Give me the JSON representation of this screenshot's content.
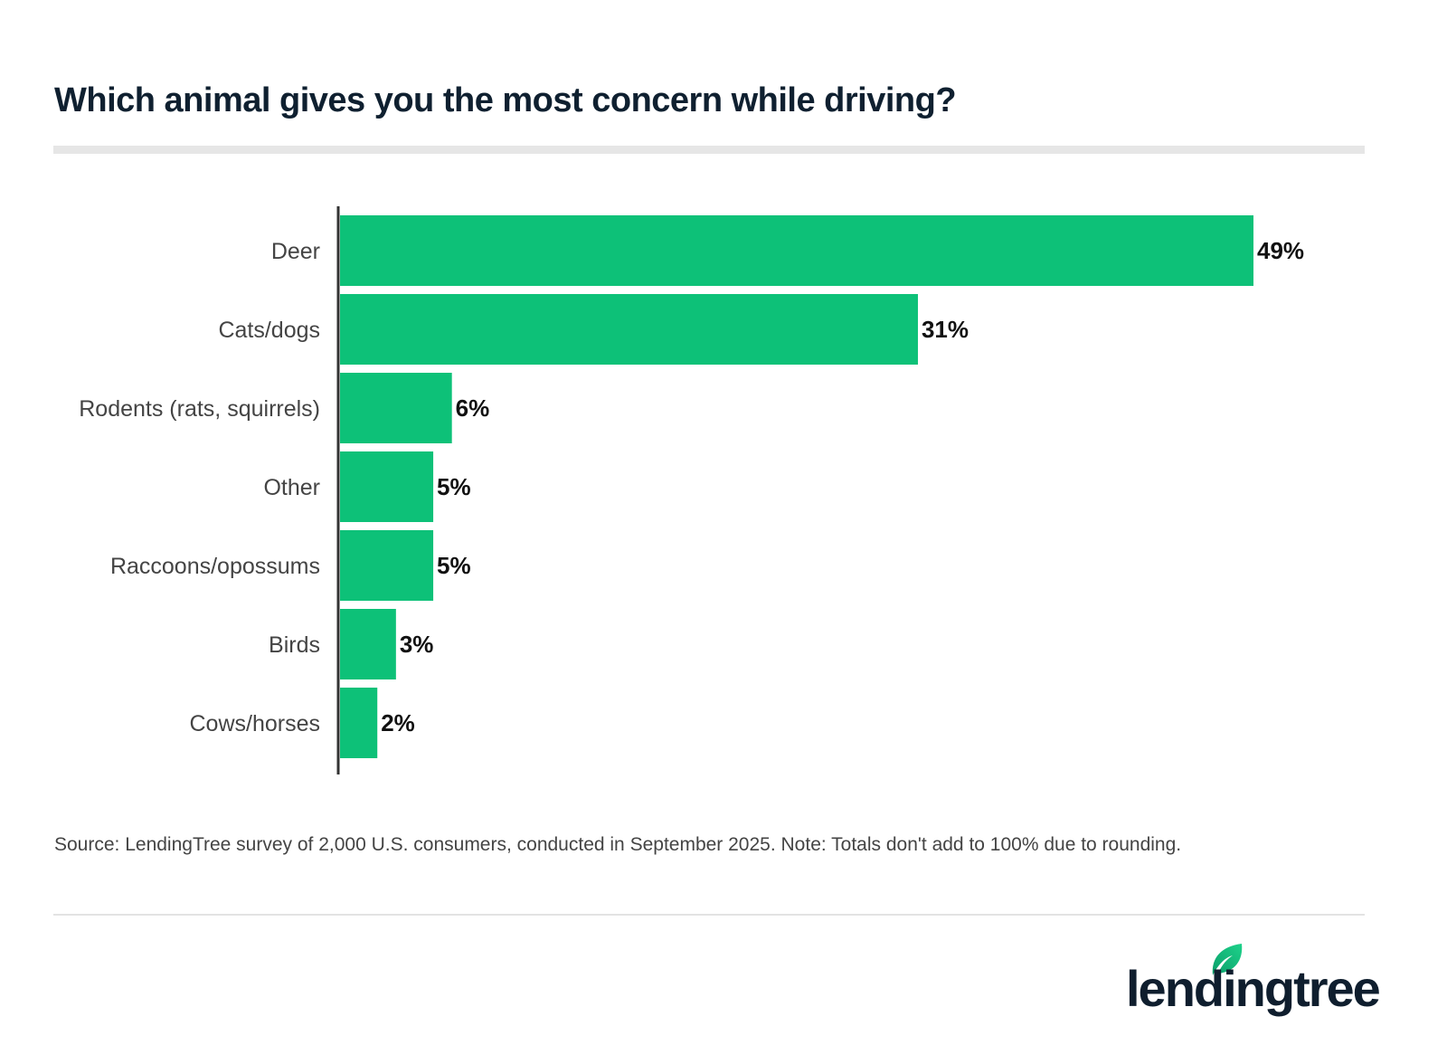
{
  "title": "Which animal gives you the most concern while driving?",
  "source": "Source: LendingTree survey of 2,000 U.S. consumers, conducted in September 2025. Note: Totals don't add to 100% due to rounding.",
  "logo": {
    "text": "lendingtree",
    "icon": "leaf-icon"
  },
  "colors": {
    "bar": "#0dc178",
    "title": "#0f2030",
    "label": "#444444"
  },
  "chart_data": {
    "type": "bar",
    "orientation": "horizontal",
    "title": "Which animal gives you the most concern while driving?",
    "categories": [
      "Deer",
      "Cats/dogs",
      "Rodents (rats, squirrels)",
      "Other",
      "Raccoons/opossums",
      "Birds",
      "Cows/horses"
    ],
    "values": [
      49,
      31,
      6,
      5,
      5,
      3,
      2
    ],
    "data_labels": [
      "49%",
      "31%",
      "6%",
      "5%",
      "5%",
      "3%",
      "2%"
    ],
    "unit": "%",
    "xlim": [
      0,
      49
    ],
    "grid": false,
    "legend": "none"
  }
}
